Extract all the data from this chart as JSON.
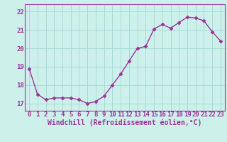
{
  "x": [
    0,
    1,
    2,
    3,
    4,
    5,
    6,
    7,
    8,
    9,
    10,
    11,
    12,
    13,
    14,
    15,
    16,
    17,
    18,
    19,
    20,
    21,
    22,
    23
  ],
  "y": [
    18.9,
    17.5,
    17.2,
    17.3,
    17.3,
    17.3,
    17.2,
    17.0,
    17.1,
    17.4,
    18.0,
    18.6,
    19.3,
    20.0,
    20.1,
    21.05,
    21.3,
    21.1,
    21.4,
    21.7,
    21.65,
    21.5,
    20.9,
    20.4
  ],
  "line_color": "#993399",
  "marker": "D",
  "markersize": 2.5,
  "linewidth": 1.0,
  "bg_color": "#cef0eb",
  "grid_color": "#9fd9d4",
  "xlabel": "Windchill (Refroidissement éolien,°C)",
  "xlabel_fontsize": 7.0,
  "tick_fontsize": 6.5,
  "ytick_labels": [
    "17",
    "18",
    "19",
    "20",
    "21",
    "22"
  ],
  "ytick_values": [
    17,
    18,
    19,
    20,
    21,
    22
  ],
  "ylim": [
    16.6,
    22.4
  ],
  "xlim": [
    -0.5,
    23.5
  ]
}
